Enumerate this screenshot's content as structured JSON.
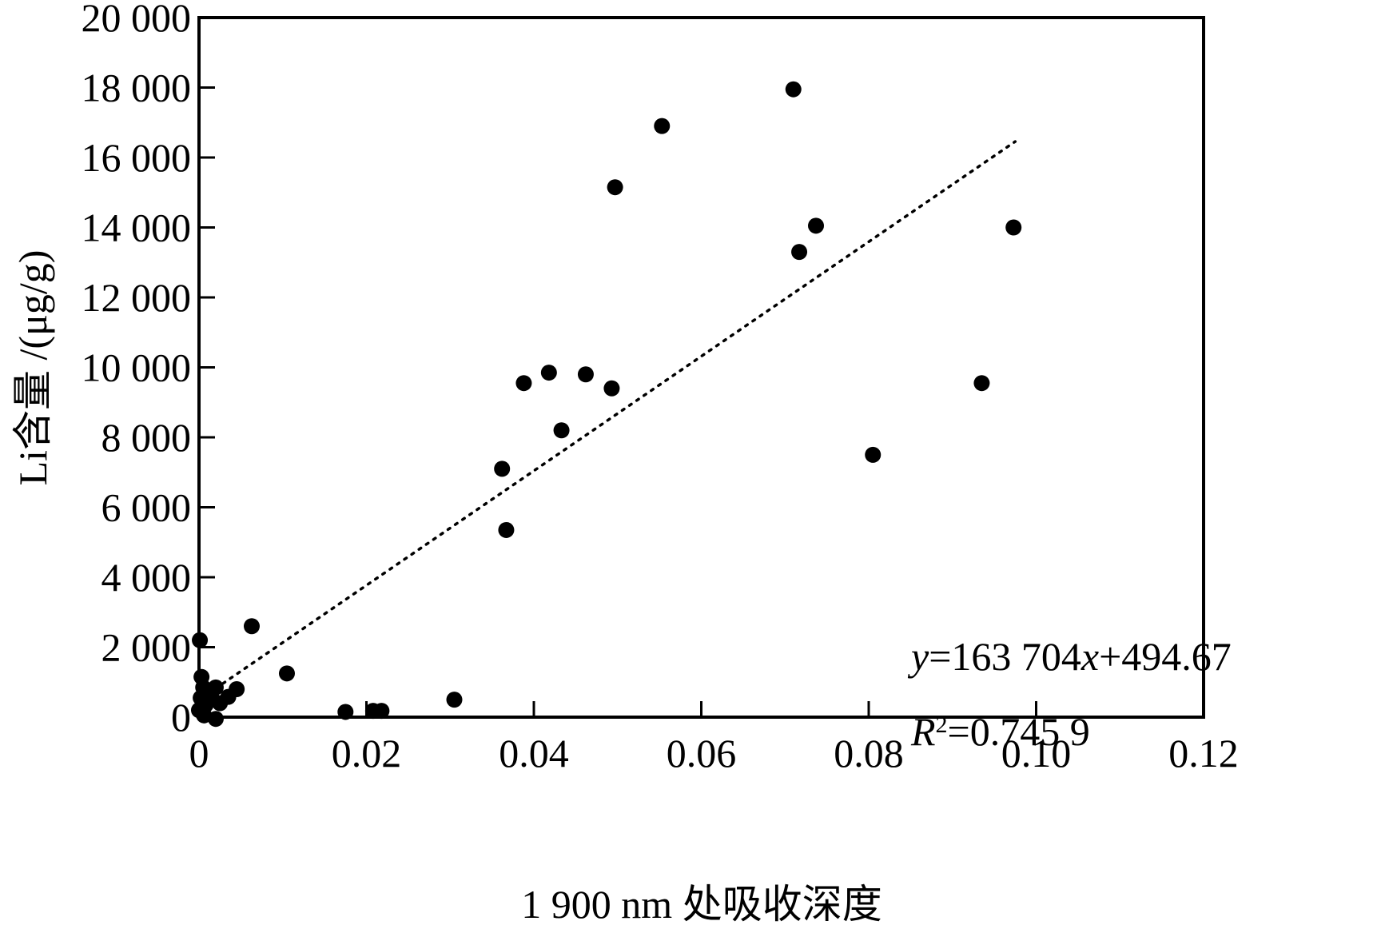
{
  "chart_data": {
    "type": "scatter",
    "title": "",
    "xlabel": "1 900 nm 处吸收深度",
    "ylabel": "Li含量 /(μg/g)",
    "xlim": [
      0,
      0.12
    ],
    "ylim": [
      0,
      20000
    ],
    "x_ticks": [
      0,
      0.02,
      0.04,
      0.06,
      0.08,
      0.1,
      0.12
    ],
    "x_tick_labels": [
      "0",
      "0.02",
      "0.04",
      "0.06",
      "0.08",
      "0.10",
      "0.12"
    ],
    "y_ticks": [
      0,
      2000,
      4000,
      6000,
      8000,
      10000,
      12000,
      14000,
      16000,
      18000,
      20000
    ],
    "y_tick_labels": [
      "0",
      "2 000",
      "4 000",
      "6 000",
      "8 000",
      "10 000",
      "12 000",
      "14 000",
      "16 000",
      "18 000",
      "20 000"
    ],
    "grid": false,
    "legend": "none",
    "series": [
      {
        "points": [
          {
            "x": 0.0001,
            "y": 2200
          },
          {
            "x": 0.0003,
            "y": 1150
          },
          {
            "x": 0.0005,
            "y": 850
          },
          {
            "x": 0.0002,
            "y": 550
          },
          {
            "x": 0.0008,
            "y": 350
          },
          {
            "x": 0.0,
            "y": 200
          },
          {
            "x": 0.0006,
            "y": 50
          },
          {
            "x": 0.0015,
            "y": 550
          },
          {
            "x": 0.002,
            "y": 850
          },
          {
            "x": 0.0025,
            "y": 400
          },
          {
            "x": 0.002,
            "y": -50
          },
          {
            "x": 0.0035,
            "y": 580
          },
          {
            "x": 0.0045,
            "y": 800
          },
          {
            "x": 0.0063,
            "y": 2600
          },
          {
            "x": 0.0105,
            "y": 1250
          },
          {
            "x": 0.0175,
            "y": 150
          },
          {
            "x": 0.0208,
            "y": 180
          },
          {
            "x": 0.0218,
            "y": 180
          },
          {
            "x": 0.0305,
            "y": 500
          },
          {
            "x": 0.0362,
            "y": 7100
          },
          {
            "x": 0.0367,
            "y": 5350
          },
          {
            "x": 0.0388,
            "y": 9550
          },
          {
            "x": 0.0418,
            "y": 9850
          },
          {
            "x": 0.0433,
            "y": 8200
          },
          {
            "x": 0.0462,
            "y": 9800
          },
          {
            "x": 0.0493,
            "y": 9400
          },
          {
            "x": 0.0497,
            "y": 15150
          },
          {
            "x": 0.0553,
            "y": 16900
          },
          {
            "x": 0.071,
            "y": 17950
          },
          {
            "x": 0.0717,
            "y": 13300
          },
          {
            "x": 0.0737,
            "y": 14050
          },
          {
            "x": 0.0805,
            "y": 7500
          },
          {
            "x": 0.0935,
            "y": 9550
          },
          {
            "x": 0.0973,
            "y": 14000
          }
        ]
      }
    ],
    "trendline": {
      "slope": 163704,
      "intercept": 494.67,
      "x_range": [
        0.002,
        0.0975
      ],
      "style": "dotted"
    },
    "annotations": {
      "equation_y": "y",
      "equation_mid": "=163 704",
      "equation_x": "x",
      "equation_tail": "+494.67",
      "r2_R": "R",
      "r2_sup": "2",
      "r2_value": "=0.745 9"
    },
    "colors": {
      "marker": "#000000",
      "axis": "#000000",
      "background": "#ffffff"
    }
  }
}
